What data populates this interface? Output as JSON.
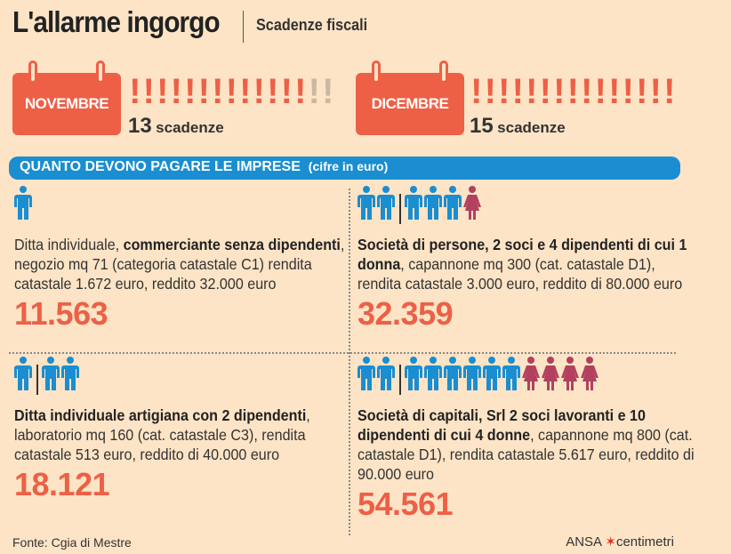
{
  "header": {
    "title": "L'allarme ingorgo",
    "subtitle": "Scadenze fiscali"
  },
  "months": [
    {
      "name": "NOVEMBRE",
      "count": "13",
      "unit": "scadenze",
      "marks_total": 15,
      "marks_active": 13
    },
    {
      "name": "DICEMBRE",
      "count": "15",
      "unit": "scadenze",
      "marks_total": 15,
      "marks_active": 15
    }
  ],
  "band": {
    "title": "QUANTO DEVONO PAGARE LE IMPRESE",
    "unit": "(cifre in euro)"
  },
  "colors": {
    "accent": "#ed6046",
    "male": "#1a8ed0",
    "female": "#b2405e",
    "inactive": "#c9b8a2",
    "band": "#1a8ed0"
  },
  "cases": [
    {
      "figures": [
        "m"
      ],
      "bold1": "",
      "text1": "Ditta individuale, ",
      "bold2": "commerciante senza dipendenti",
      "text2": ", negozio mq 71 (categoria catastale C1) rendita catastale 1.672 euro, reddito 32.000 euro",
      "amount": "11.563"
    },
    {
      "figures": [
        "m",
        "m",
        "|",
        "m",
        "m",
        "m",
        "f"
      ],
      "bold1": "Società di persone, 2 soci e 4 dipendenti di cui 1 donna",
      "text1": ", capannone mq 300 (cat. catastale D1), rendita catastale 3.000 euro, reddito di 80.000 euro",
      "bold2": "",
      "text2": "",
      "amount": "32.359"
    },
    {
      "figures": [
        "m",
        "|",
        "m",
        "m"
      ],
      "bold1": "Ditta individuale artigiana con 2 dipendenti",
      "text1": ", laboratorio mq 160 (cat. catastale C3), rendita catastale 513 euro, reddito di 40.000 euro",
      "bold2": "",
      "text2": "",
      "amount": "18.121"
    },
    {
      "figures": [
        "m",
        "m",
        "|",
        "m",
        "m",
        "m",
        "m",
        "m",
        "m",
        "f",
        "f",
        "f",
        "f"
      ],
      "bold1": "Società di capitali, Srl 2 soci lavoranti e 10 dipendenti di cui 4 donne",
      "text1": ", capannone mq 800 (cat. catastale D1), rendita catastale 5.617 euro, reddito di 90.000 euro",
      "bold2": "",
      "text2": "",
      "amount": "54.561"
    }
  ],
  "footer": {
    "source": "Fonte: Cgia di Mestre",
    "logo_a": "ANSA",
    "logo_b": "centimetri"
  }
}
